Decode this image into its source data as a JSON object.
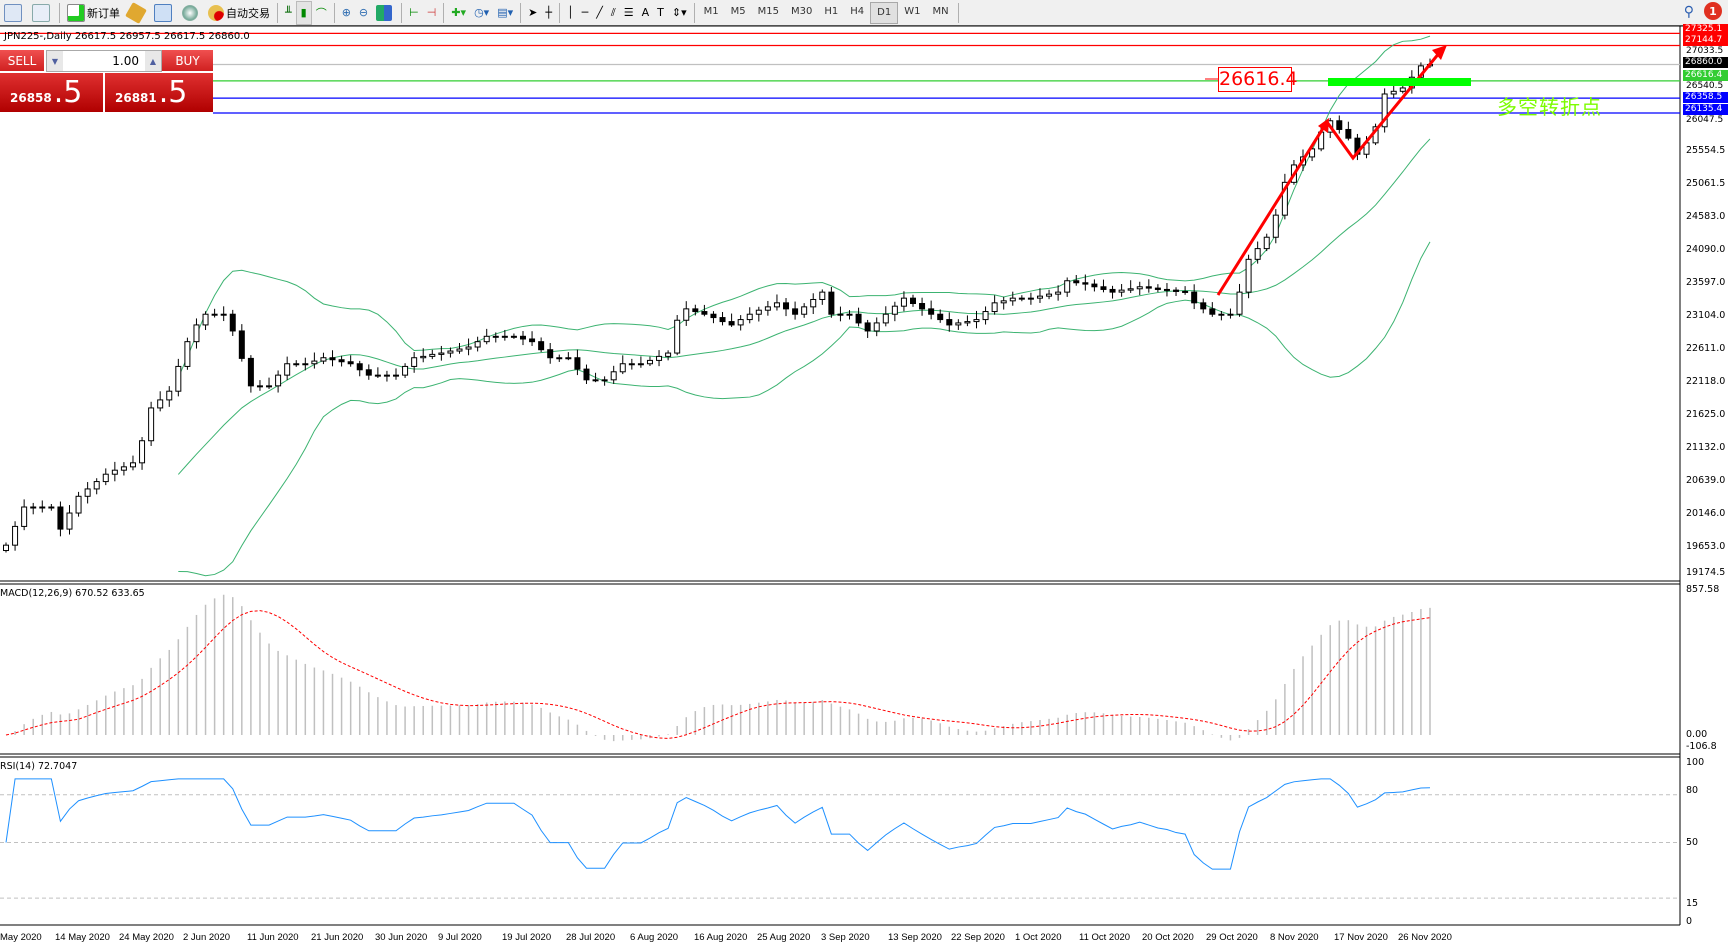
{
  "toolbar": {
    "new_order": "新订单",
    "auto_trading": "自动交易",
    "timeframes": [
      "M1",
      "M5",
      "M15",
      "M30",
      "H1",
      "H4",
      "D1",
      "W1",
      "MN"
    ],
    "active_timeframe": "D1",
    "notification_count": "1"
  },
  "chart": {
    "info": "JPN225-,Daily  26617.5 26957.5 26617.5 26860.0",
    "one_click": {
      "sell_label": "SELL",
      "buy_label": "BUY",
      "lot": "1.00",
      "sell_price_main": "26858",
      "sell_price_frac": ".5",
      "buy_price_main": "26881",
      "buy_price_frac": ".5"
    },
    "annotation_level": "26616.4",
    "annotation_text": "多空转折点",
    "price_axis": [
      "25554.5",
      "25061.5",
      "24583.0",
      "24090.0",
      "23597.0",
      "23104.0",
      "22611.0",
      "22118.0",
      "21625.0",
      "21132.0",
      "20639.0",
      "20146.0",
      "19653.0",
      "19174.5"
    ],
    "price_axis_partial": [
      "27033.5",
      "26540.5",
      "26047.5"
    ],
    "price_tags": [
      {
        "value": "27325.1",
        "color": "#ff0000"
      },
      {
        "value": "27144.7",
        "color": "#ff0000"
      },
      {
        "value": "26860.0",
        "color": "#000000"
      },
      {
        "value": "26616.4",
        "color": "#32cd32"
      },
      {
        "value": "26358.5",
        "color": "#0000ff"
      },
      {
        "value": "26135.4",
        "color": "#0000ff"
      }
    ],
    "macd": {
      "title": "MACD(12,26,9) 670.52 633.65",
      "axis": [
        "857.58",
        "0.00",
        "-106.8"
      ]
    },
    "rsi": {
      "title": "RSI(14) 72.7047",
      "axis": [
        "100",
        "80",
        "50",
        "15",
        "0"
      ]
    },
    "dates": [
      "May 2020",
      "14 May 2020",
      "24 May 2020",
      "2 Jun 2020",
      "11 Jun 2020",
      "21 Jun 2020",
      "30 Jun 2020",
      "9 Jul 2020",
      "19 Jul 2020",
      "28 Jul 2020",
      "6 Aug 2020",
      "16 Aug 2020",
      "25 Aug 2020",
      "3 Sep 2020",
      "13 Sep 2020",
      "22 Sep 2020",
      "1 Oct 2020",
      "11 Oct 2020",
      "20 Oct 2020",
      "29 Oct 2020",
      "8 Nov 2020",
      "17 Nov 2020",
      "26 Nov 2020"
    ]
  },
  "chart_data": {
    "type": "candlestick",
    "symbol": "JPN225-",
    "period": "Daily",
    "ylim": [
      19174.5,
      27325.1
    ],
    "closes": [
      19680,
      19960,
      20250,
      20250,
      20250,
      20250,
      19920,
      20160,
      20410,
      20520,
      20630,
      20740,
      20800,
      20850,
      20910,
      21240,
      21730,
      21850,
      21980,
      22350,
      22720,
      22970,
      23130,
      23130,
      23130,
      22880,
      22470,
      22060,
      22060,
      22060,
      22220,
      22390,
      22390,
      22390,
      22430,
      22480,
      22450,
      22420,
      22390,
      22300,
      22220,
      22220,
      22220,
      22220,
      22350,
      22480,
      22500,
      22530,
      22550,
      22580,
      22610,
      22640,
      22720,
      22800,
      22800,
      22800,
      22800,
      22760,
      22720,
      22600,
      22480,
      22480,
      22480,
      22310,
      22150,
      22150,
      22150,
      22270,
      22390,
      22390,
      22390,
      22440,
      22500,
      22550,
      23040,
      23210,
      23170,
      23130,
      23080,
      23020,
      22970,
      23050,
      23130,
      23190,
      23240,
      23300,
      23210,
      23130,
      23240,
      23350,
      23460,
      23130,
      23130,
      23130,
      23000,
      22880,
      23000,
      23130,
      23250,
      23370,
      23290,
      23210,
      23130,
      23050,
      22970,
      23000,
      23020,
      23050,
      23170,
      23300,
      23330,
      23370,
      23370,
      23370,
      23400,
      23430,
      23460,
      23630,
      23600,
      23580,
      23540,
      23500,
      23460,
      23490,
      23510,
      23540,
      23520,
      23500,
      23490,
      23470,
      23460,
      23300,
      23210,
      23130,
      23130,
      23130,
      23460,
      23950,
      24110,
      24280,
      24610,
      25100,
      25360,
      25480,
      25600,
      25850,
      26020,
      25890,
      25760,
      25520,
      25690,
      25930,
      26420,
      26460,
      26510,
      26670,
      26840,
      26860
    ],
    "horizontal_lines": [
      {
        "price": 27325.1,
        "color": "#ff0000"
      },
      {
        "price": 27144.7,
        "color": "#ff0000"
      },
      {
        "price": 26860.0,
        "color": "#c0c0c0"
      },
      {
        "price": 26616.4,
        "color": "#32cd32"
      },
      {
        "price": 26358.5,
        "color": "#0000ff"
      },
      {
        "price": 26135.4,
        "color": "#0000ff"
      }
    ],
    "indicators": [
      "Bollinger Bands",
      "MACD(12,26,9)",
      "RSI(14)"
    ],
    "rsi_levels": [
      80,
      50,
      15
    ],
    "colors": {
      "bands": "#3cb371",
      "macd_hist": "#c0c0c0",
      "macd_signal": "#ff0000",
      "rsi": "#1e90ff",
      "arrow": "#ff0000",
      "pivot_bar": "#00ff00"
    }
  }
}
